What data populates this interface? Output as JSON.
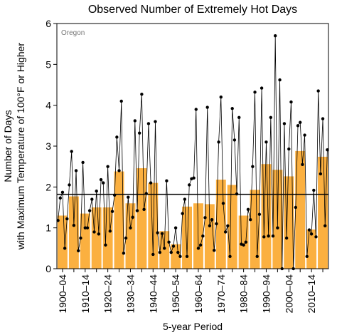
{
  "chart_data": {
    "type": "bar-line",
    "title": "Observed Number of Extremely Hot Days",
    "annotation": "Oregon",
    "ylabel": [
      "Number of Days",
      "with Maximum Temperature of 100°F or Higher"
    ],
    "xlabel": "5-year Period",
    "categories": [
      "1900–04",
      null,
      "1910–14",
      null,
      "1920–24",
      null,
      "1930–34",
      null,
      "1940–44",
      null,
      "1950–54",
      null,
      "1960–64",
      null,
      "1970–74",
      null,
      "1980–84",
      null,
      "1990–94",
      null,
      "2000–04",
      null,
      "2010–14",
      null
    ],
    "bars": {
      "color": "#fbb040",
      "values": [
        1.3,
        1.77,
        1.35,
        1.5,
        1.5,
        2.38,
        1.6,
        2.46,
        2.1,
        0.92,
        0.6,
        1.52,
        1.6,
        1.58,
        2.18,
        2.05,
        1.3,
        1.93,
        2.56,
        2.42,
        2.26,
        2.88,
        0.96,
        2.74
      ]
    },
    "line": {
      "color": "#000000",
      "values": [
        1.18,
        1.73,
        1.87,
        0.5,
        1.22,
        2.05,
        2.87,
        1.06,
        2.4,
        0.44,
        0.75,
        2.6,
        1.0,
        1.0,
        1.42,
        1.7,
        0.9,
        1.9,
        0.85,
        2.18,
        2.1,
        0.58,
        2.5,
        0.92,
        1.4,
        1.8,
        3.22,
        2.4,
        4.1,
        0.38,
        0.75,
        1.75,
        1.0,
        1.26,
        3.62,
        1.42,
        3.32,
        4.27,
        1.45,
        1.84,
        3.55,
        2.1,
        0.35,
        3.6,
        0.88,
        0.4,
        0.86,
        0.5,
        2.15,
        0.65,
        0.4,
        0.55,
        1.0,
        0.4,
        0.3,
        1.35,
        1.7,
        0.3,
        2.05,
        2.2,
        2.22,
        3.9,
        0.5,
        0.58,
        0.8,
        1.25,
        3.95,
        1.05,
        1.2,
        0.45,
        1.1,
        3.1,
        4.2,
        1.6,
        0.9,
        1.05,
        0.3,
        3.92,
        3.15,
        1.83,
        3.7,
        0.6,
        0.58,
        0.65,
        1.45,
        1.2,
        2.5,
        4.32,
        0.3,
        1.33,
        4.42,
        0.78,
        3.1,
        0.8,
        3.7,
        0.8,
        5.7,
        1.0,
        4.62,
        0.0,
        3.55,
        0.75,
        2.93,
        4.08,
        0.0,
        1.5,
        3.5,
        3.58,
        2.55,
        3.27,
        0.3,
        0.95,
        0.85,
        1.92,
        0.78,
        4.35,
        2.32,
        3.67,
        1.05,
        2.91
      ]
    },
    "reference_line": 1.82,
    "ylim": [
      0,
      6
    ],
    "yticks": [
      0,
      1,
      2,
      3,
      4,
      5,
      6
    ]
  }
}
